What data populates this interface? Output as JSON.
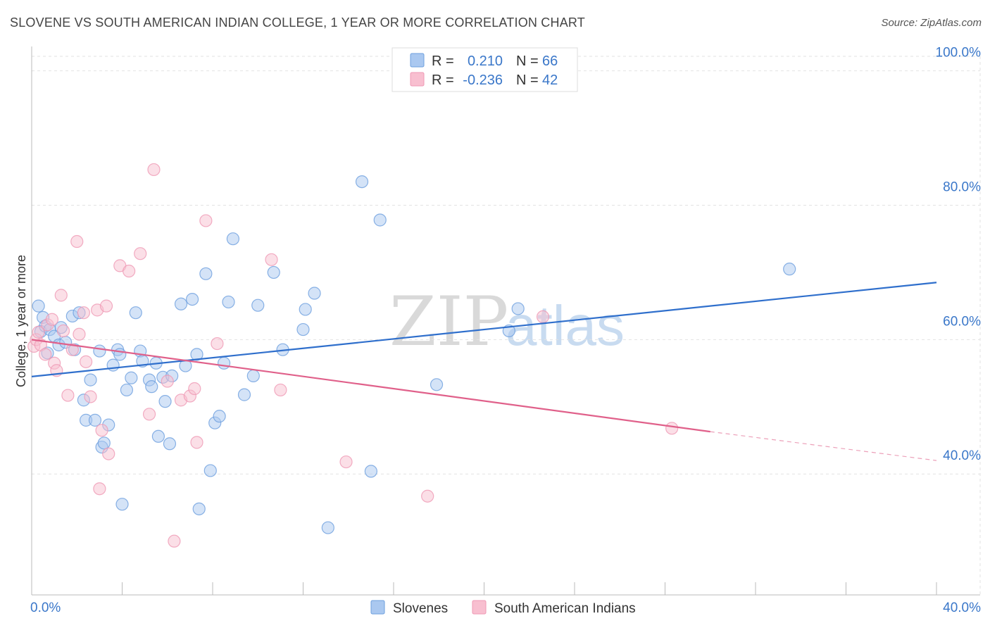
{
  "header": {
    "title": "SLOVENE VS SOUTH AMERICAN INDIAN COLLEGE, 1 YEAR OR MORE CORRELATION CHART",
    "source": "Source: ZipAtlas.com"
  },
  "watermark": {
    "zip": "ZIP",
    "atlas": "atlas"
  },
  "legend_top": {
    "rows": [
      {
        "r_label": "R =",
        "r_value": "0.210",
        "n_label": "N =",
        "n_value": "66",
        "color": "#aac8f0"
      },
      {
        "r_label": "R =",
        "r_value": "-0.236",
        "n_label": "N =",
        "n_value": "42",
        "color": "#f8bfd0"
      }
    ]
  },
  "legend_bottom": {
    "items": [
      {
        "label": "Slovenes",
        "color": "#aac8f0"
      },
      {
        "label": "South American Indians",
        "color": "#f8bfd0"
      }
    ]
  },
  "chart_data": {
    "type": "scatter",
    "title": "SLOVENE VS SOUTH AMERICAN INDIAN COLLEGE, 1 YEAR OR MORE CORRELATION CHART",
    "xlabel": "",
    "ylabel": "College, 1 year or more",
    "xlim": [
      0,
      40
    ],
    "ylim": [
      22,
      103
    ],
    "x_tick_labels": [
      "0.0%",
      "40.0%"
    ],
    "y_ticks": [
      40,
      60,
      80,
      100
    ],
    "y_tick_labels": [
      "40.0%",
      "60.0%",
      "80.0%",
      "100.0%"
    ],
    "grid": true,
    "legend": "top-center",
    "series": [
      {
        "name": "Slovenes",
        "color": "#6d9fde",
        "fill": "#aac8f0",
        "trend": {
          "x": [
            0,
            40
          ],
          "y": [
            54.5,
            68.5
          ],
          "line_color": "#2f6fcc"
        },
        "points": [
          [
            0.3,
            65.0
          ],
          [
            0.4,
            61.2
          ],
          [
            0.5,
            63.3
          ],
          [
            0.6,
            62.0
          ],
          [
            0.7,
            58.0
          ],
          [
            0.8,
            61.5
          ],
          [
            1.0,
            60.5
          ],
          [
            1.2,
            59.2
          ],
          [
            1.3,
            61.8
          ],
          [
            1.5,
            59.6
          ],
          [
            1.8,
            63.5
          ],
          [
            1.9,
            58.5
          ],
          [
            2.1,
            64.0
          ],
          [
            2.3,
            51.0
          ],
          [
            2.4,
            48.0
          ],
          [
            2.6,
            54.0
          ],
          [
            2.8,
            48.0
          ],
          [
            3.0,
            58.3
          ],
          [
            3.1,
            44.0
          ],
          [
            3.2,
            44.6
          ],
          [
            3.4,
            47.3
          ],
          [
            3.6,
            56.2
          ],
          [
            3.8,
            58.5
          ],
          [
            3.9,
            57.8
          ],
          [
            4.0,
            35.5
          ],
          [
            4.2,
            52.5
          ],
          [
            4.4,
            54.3
          ],
          [
            4.6,
            64.0
          ],
          [
            4.8,
            58.3
          ],
          [
            4.9,
            56.8
          ],
          [
            5.2,
            54.0
          ],
          [
            5.3,
            53.0
          ],
          [
            5.5,
            56.5
          ],
          [
            5.6,
            45.6
          ],
          [
            5.8,
            54.4
          ],
          [
            5.9,
            50.8
          ],
          [
            6.1,
            44.5
          ],
          [
            6.2,
            54.6
          ],
          [
            6.6,
            65.3
          ],
          [
            6.8,
            56.1
          ],
          [
            7.1,
            66.0
          ],
          [
            7.3,
            57.8
          ],
          [
            7.4,
            34.8
          ],
          [
            7.7,
            69.8
          ],
          [
            7.9,
            40.5
          ],
          [
            8.1,
            47.6
          ],
          [
            8.3,
            48.6
          ],
          [
            8.5,
            56.5
          ],
          [
            8.7,
            65.6
          ],
          [
            8.9,
            75.0
          ],
          [
            9.4,
            51.8
          ],
          [
            9.8,
            54.6
          ],
          [
            10.0,
            65.1
          ],
          [
            10.7,
            70.0
          ],
          [
            11.1,
            58.5
          ],
          [
            12.0,
            61.5
          ],
          [
            12.1,
            64.5
          ],
          [
            12.5,
            66.9
          ],
          [
            13.1,
            32.0
          ],
          [
            14.6,
            83.5
          ],
          [
            15.0,
            40.4
          ],
          [
            15.4,
            77.8
          ],
          [
            17.9,
            53.3
          ],
          [
            21.1,
            61.3
          ],
          [
            21.5,
            64.6
          ],
          [
            33.5,
            70.5
          ]
        ]
      },
      {
        "name": "South American Indians",
        "color": "#ef98b4",
        "fill": "#f8bfd0",
        "trend": {
          "x": [
            0,
            30
          ],
          "y": [
            60.0,
            46.3
          ],
          "line_color": "#e0608a",
          "dashed_to": {
            "x": 40,
            "y": 42.0
          }
        },
        "points": [
          [
            0.1,
            59.0
          ],
          [
            0.2,
            60.0
          ],
          [
            0.3,
            61.1
          ],
          [
            0.4,
            59.2
          ],
          [
            0.6,
            57.8
          ],
          [
            0.7,
            62.2
          ],
          [
            0.9,
            63.0
          ],
          [
            1.0,
            56.5
          ],
          [
            1.1,
            55.4
          ],
          [
            1.3,
            66.6
          ],
          [
            1.4,
            61.3
          ],
          [
            1.6,
            51.7
          ],
          [
            1.8,
            58.5
          ],
          [
            2.0,
            74.6
          ],
          [
            2.1,
            60.8
          ],
          [
            2.3,
            64.0
          ],
          [
            2.4,
            56.7
          ],
          [
            2.6,
            51.5
          ],
          [
            2.9,
            64.4
          ],
          [
            3.0,
            37.8
          ],
          [
            3.1,
            46.5
          ],
          [
            3.3,
            65.0
          ],
          [
            3.4,
            43.0
          ],
          [
            3.9,
            71.0
          ],
          [
            4.3,
            70.2
          ],
          [
            4.8,
            72.8
          ],
          [
            5.2,
            48.9
          ],
          [
            5.4,
            85.3
          ],
          [
            6.0,
            53.8
          ],
          [
            6.3,
            30.0
          ],
          [
            6.6,
            51.0
          ],
          [
            7.0,
            51.6
          ],
          [
            7.2,
            52.7
          ],
          [
            7.3,
            44.7
          ],
          [
            7.7,
            77.7
          ],
          [
            8.2,
            59.4
          ],
          [
            10.6,
            71.9
          ],
          [
            11.0,
            52.5
          ],
          [
            13.9,
            41.8
          ],
          [
            17.5,
            36.7
          ],
          [
            22.6,
            63.4
          ],
          [
            28.3,
            46.8
          ]
        ]
      }
    ]
  }
}
